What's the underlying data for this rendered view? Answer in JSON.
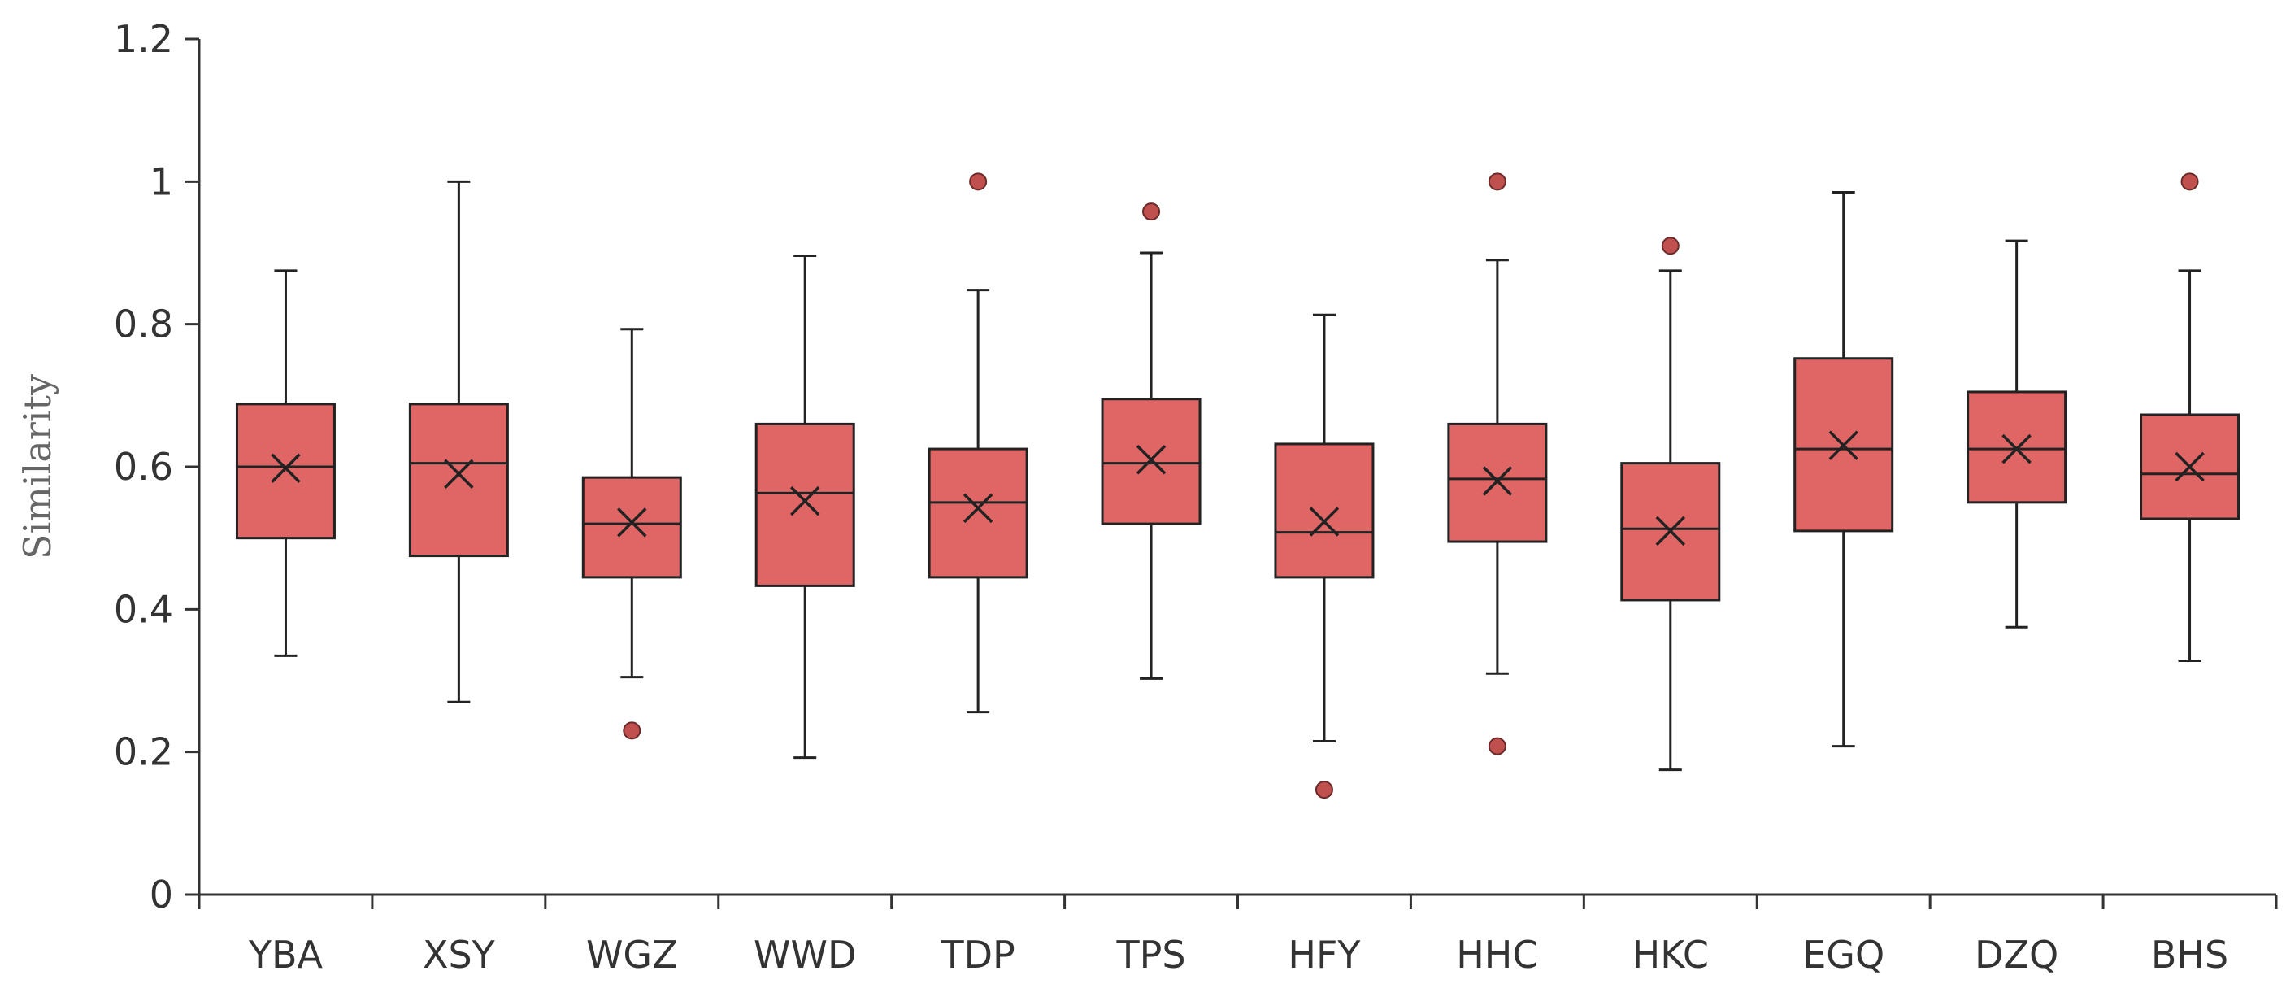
{
  "chart_data": {
    "type": "box",
    "title": "",
    "xlabel": "",
    "ylabel": "Similarity",
    "ylim": [
      0,
      1.2
    ],
    "yticks": [
      "0",
      "0.2",
      "0.4",
      "0.6",
      "0.8",
      "1",
      "1.2"
    ],
    "ytick_values": [
      0,
      0.2,
      0.4,
      0.6,
      0.8,
      1.0,
      1.2
    ],
    "grid": false,
    "legend": "none",
    "colors": {
      "box_fill": "#e06666",
      "box_stroke": "#222222",
      "outlier_fill": "#c0504d",
      "axis": "#333333"
    },
    "categories": [
      "YBA",
      "XSY",
      "WGZ",
      "WWD",
      "TDP",
      "TPS",
      "HFY",
      "HHC",
      "HKC",
      "EGQ",
      "DZQ",
      "BHS"
    ],
    "boxes": [
      {
        "category": "YBA",
        "min": 0.335,
        "q1": 0.5,
        "median": 0.6,
        "q3": 0.688,
        "max": 0.875,
        "mean": 0.598,
        "outliers": []
      },
      {
        "category": "XSY",
        "min": 0.27,
        "q1": 0.475,
        "median": 0.605,
        "q3": 0.688,
        "max": 1.0,
        "mean": 0.59,
        "outliers": []
      },
      {
        "category": "WGZ",
        "min": 0.305,
        "q1": 0.445,
        "median": 0.52,
        "q3": 0.585,
        "max": 0.793,
        "mean": 0.522,
        "outliers": [
          0.23
        ]
      },
      {
        "category": "WWD",
        "min": 0.192,
        "q1": 0.433,
        "median": 0.563,
        "q3": 0.66,
        "max": 0.896,
        "mean": 0.552,
        "outliers": []
      },
      {
        "category": "TDP",
        "min": 0.256,
        "q1": 0.445,
        "median": 0.55,
        "q3": 0.625,
        "max": 0.848,
        "mean": 0.542,
        "outliers": [
          1.0
        ]
      },
      {
        "category": "TPS",
        "min": 0.303,
        "q1": 0.52,
        "median": 0.605,
        "q3": 0.695,
        "max": 0.9,
        "mean": 0.61,
        "outliers": [
          0.958
        ]
      },
      {
        "category": "HFY",
        "min": 0.215,
        "q1": 0.445,
        "median": 0.508,
        "q3": 0.632,
        "max": 0.813,
        "mean": 0.523,
        "outliers": [
          0.147
        ]
      },
      {
        "category": "HHC",
        "min": 0.31,
        "q1": 0.495,
        "median": 0.583,
        "q3": 0.66,
        "max": 0.89,
        "mean": 0.58,
        "outliers": [
          0.208,
          1.0
        ]
      },
      {
        "category": "HKC",
        "min": 0.175,
        "q1": 0.413,
        "median": 0.513,
        "q3": 0.605,
        "max": 0.875,
        "mean": 0.51,
        "outliers": [
          0.91
        ]
      },
      {
        "category": "EGQ",
        "min": 0.208,
        "q1": 0.51,
        "median": 0.625,
        "q3": 0.752,
        "max": 0.985,
        "mean": 0.63,
        "outliers": []
      },
      {
        "category": "DZQ",
        "min": 0.375,
        "q1": 0.55,
        "median": 0.625,
        "q3": 0.705,
        "max": 0.917,
        "mean": 0.625,
        "outliers": []
      },
      {
        "category": "BHS",
        "min": 0.328,
        "q1": 0.527,
        "median": 0.59,
        "q3": 0.673,
        "max": 0.875,
        "mean": 0.6,
        "outliers": [
          1.0
        ]
      }
    ]
  }
}
